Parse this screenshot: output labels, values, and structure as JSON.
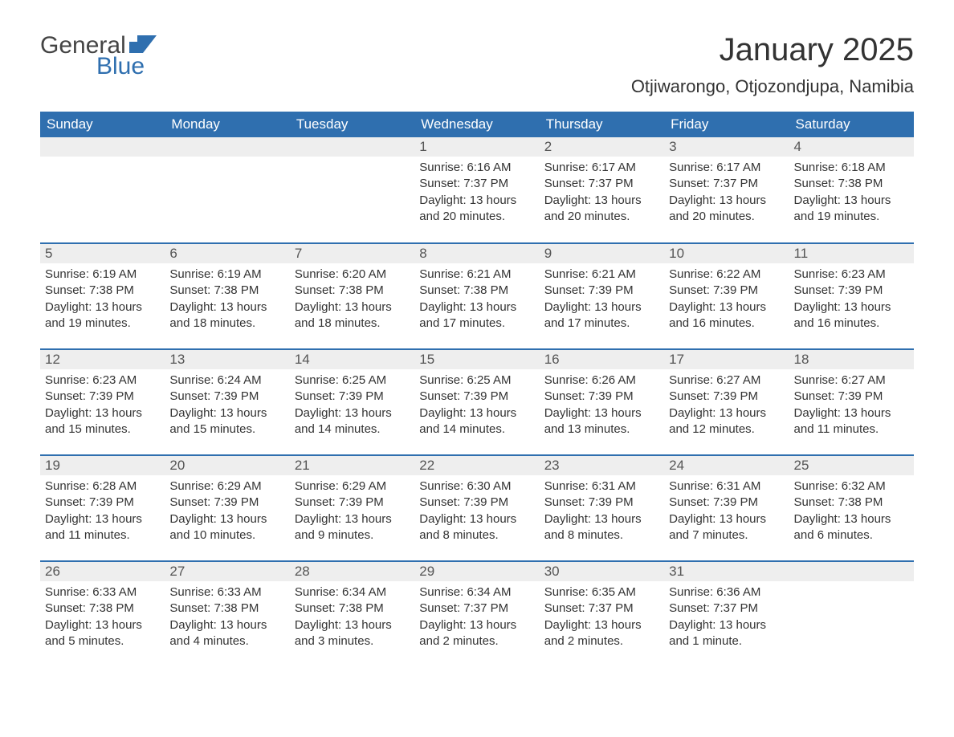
{
  "brand": {
    "part1": "General",
    "part2": "Blue"
  },
  "title": "January 2025",
  "subtitle": "Otjiwarongo, Otjozondjupa, Namibia",
  "colors": {
    "header_bg": "#2f6faf",
    "header_text": "#ffffff",
    "daynum_bg": "#eeeeee",
    "row_border": "#2f6faf",
    "body_text": "#333333",
    "brand_blue": "#2f6faf"
  },
  "weekdays": [
    "Sunday",
    "Monday",
    "Tuesday",
    "Wednesday",
    "Thursday",
    "Friday",
    "Saturday"
  ],
  "weeks": [
    [
      {
        "empty": true
      },
      {
        "empty": true
      },
      {
        "empty": true
      },
      {
        "day": "1",
        "sunrise": "Sunrise: 6:16 AM",
        "sunset": "Sunset: 7:37 PM",
        "daylight": "Daylight: 13 hours and 20 minutes."
      },
      {
        "day": "2",
        "sunrise": "Sunrise: 6:17 AM",
        "sunset": "Sunset: 7:37 PM",
        "daylight": "Daylight: 13 hours and 20 minutes."
      },
      {
        "day": "3",
        "sunrise": "Sunrise: 6:17 AM",
        "sunset": "Sunset: 7:37 PM",
        "daylight": "Daylight: 13 hours and 20 minutes."
      },
      {
        "day": "4",
        "sunrise": "Sunrise: 6:18 AM",
        "sunset": "Sunset: 7:38 PM",
        "daylight": "Daylight: 13 hours and 19 minutes."
      }
    ],
    [
      {
        "day": "5",
        "sunrise": "Sunrise: 6:19 AM",
        "sunset": "Sunset: 7:38 PM",
        "daylight": "Daylight: 13 hours and 19 minutes."
      },
      {
        "day": "6",
        "sunrise": "Sunrise: 6:19 AM",
        "sunset": "Sunset: 7:38 PM",
        "daylight": "Daylight: 13 hours and 18 minutes."
      },
      {
        "day": "7",
        "sunrise": "Sunrise: 6:20 AM",
        "sunset": "Sunset: 7:38 PM",
        "daylight": "Daylight: 13 hours and 18 minutes."
      },
      {
        "day": "8",
        "sunrise": "Sunrise: 6:21 AM",
        "sunset": "Sunset: 7:38 PM",
        "daylight": "Daylight: 13 hours and 17 minutes."
      },
      {
        "day": "9",
        "sunrise": "Sunrise: 6:21 AM",
        "sunset": "Sunset: 7:39 PM",
        "daylight": "Daylight: 13 hours and 17 minutes."
      },
      {
        "day": "10",
        "sunrise": "Sunrise: 6:22 AM",
        "sunset": "Sunset: 7:39 PM",
        "daylight": "Daylight: 13 hours and 16 minutes."
      },
      {
        "day": "11",
        "sunrise": "Sunrise: 6:23 AM",
        "sunset": "Sunset: 7:39 PM",
        "daylight": "Daylight: 13 hours and 16 minutes."
      }
    ],
    [
      {
        "day": "12",
        "sunrise": "Sunrise: 6:23 AM",
        "sunset": "Sunset: 7:39 PM",
        "daylight": "Daylight: 13 hours and 15 minutes."
      },
      {
        "day": "13",
        "sunrise": "Sunrise: 6:24 AM",
        "sunset": "Sunset: 7:39 PM",
        "daylight": "Daylight: 13 hours and 15 minutes."
      },
      {
        "day": "14",
        "sunrise": "Sunrise: 6:25 AM",
        "sunset": "Sunset: 7:39 PM",
        "daylight": "Daylight: 13 hours and 14 minutes."
      },
      {
        "day": "15",
        "sunrise": "Sunrise: 6:25 AM",
        "sunset": "Sunset: 7:39 PM",
        "daylight": "Daylight: 13 hours and 14 minutes."
      },
      {
        "day": "16",
        "sunrise": "Sunrise: 6:26 AM",
        "sunset": "Sunset: 7:39 PM",
        "daylight": "Daylight: 13 hours and 13 minutes."
      },
      {
        "day": "17",
        "sunrise": "Sunrise: 6:27 AM",
        "sunset": "Sunset: 7:39 PM",
        "daylight": "Daylight: 13 hours and 12 minutes."
      },
      {
        "day": "18",
        "sunrise": "Sunrise: 6:27 AM",
        "sunset": "Sunset: 7:39 PM",
        "daylight": "Daylight: 13 hours and 11 minutes."
      }
    ],
    [
      {
        "day": "19",
        "sunrise": "Sunrise: 6:28 AM",
        "sunset": "Sunset: 7:39 PM",
        "daylight": "Daylight: 13 hours and 11 minutes."
      },
      {
        "day": "20",
        "sunrise": "Sunrise: 6:29 AM",
        "sunset": "Sunset: 7:39 PM",
        "daylight": "Daylight: 13 hours and 10 minutes."
      },
      {
        "day": "21",
        "sunrise": "Sunrise: 6:29 AM",
        "sunset": "Sunset: 7:39 PM",
        "daylight": "Daylight: 13 hours and 9 minutes."
      },
      {
        "day": "22",
        "sunrise": "Sunrise: 6:30 AM",
        "sunset": "Sunset: 7:39 PM",
        "daylight": "Daylight: 13 hours and 8 minutes."
      },
      {
        "day": "23",
        "sunrise": "Sunrise: 6:31 AM",
        "sunset": "Sunset: 7:39 PM",
        "daylight": "Daylight: 13 hours and 8 minutes."
      },
      {
        "day": "24",
        "sunrise": "Sunrise: 6:31 AM",
        "sunset": "Sunset: 7:39 PM",
        "daylight": "Daylight: 13 hours and 7 minutes."
      },
      {
        "day": "25",
        "sunrise": "Sunrise: 6:32 AM",
        "sunset": "Sunset: 7:38 PM",
        "daylight": "Daylight: 13 hours and 6 minutes."
      }
    ],
    [
      {
        "day": "26",
        "sunrise": "Sunrise: 6:33 AM",
        "sunset": "Sunset: 7:38 PM",
        "daylight": "Daylight: 13 hours and 5 minutes."
      },
      {
        "day": "27",
        "sunrise": "Sunrise: 6:33 AM",
        "sunset": "Sunset: 7:38 PM",
        "daylight": "Daylight: 13 hours and 4 minutes."
      },
      {
        "day": "28",
        "sunrise": "Sunrise: 6:34 AM",
        "sunset": "Sunset: 7:38 PM",
        "daylight": "Daylight: 13 hours and 3 minutes."
      },
      {
        "day": "29",
        "sunrise": "Sunrise: 6:34 AM",
        "sunset": "Sunset: 7:37 PM",
        "daylight": "Daylight: 13 hours and 2 minutes."
      },
      {
        "day": "30",
        "sunrise": "Sunrise: 6:35 AM",
        "sunset": "Sunset: 7:37 PM",
        "daylight": "Daylight: 13 hours and 2 minutes."
      },
      {
        "day": "31",
        "sunrise": "Sunrise: 6:36 AM",
        "sunset": "Sunset: 7:37 PM",
        "daylight": "Daylight: 13 hours and 1 minute."
      },
      {
        "empty": true
      }
    ]
  ]
}
